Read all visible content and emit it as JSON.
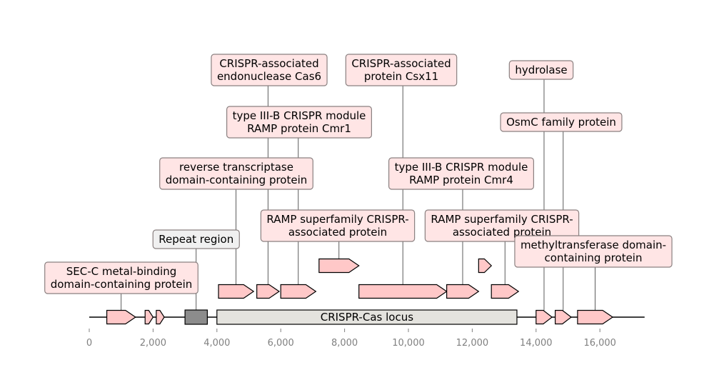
{
  "chart_data": {
    "type": "genome-map",
    "title": "",
    "x_axis": {
      "range": [
        0,
        17400
      ],
      "ticks": [
        0,
        2000,
        4000,
        6000,
        8000,
        10000,
        12000,
        14000,
        16000
      ],
      "tick_labels": [
        "0",
        "2,000",
        "4,000",
        "6,000",
        "8,000",
        "10,000",
        "12,000",
        "14,000",
        "16,000"
      ]
    },
    "backbone_range": [
      0,
      17400
    ],
    "locus": {
      "label": "CRISPR-Cas locus",
      "start": 4000,
      "end": 13400
    },
    "repeat_region": {
      "label": "Repeat region",
      "start": 3000,
      "end": 3700
    },
    "features": [
      {
        "start": 550,
        "end": 1450,
        "track": 0,
        "label": [
          "SEC-C metal-binding",
          "domain-containing protein"
        ],
        "label_level": 1
      },
      {
        "start": 1750,
        "end": 2000,
        "track": 0
      },
      {
        "start": 2100,
        "end": 2350,
        "track": 0
      },
      {
        "start": 4050,
        "end": 5150,
        "track": 1,
        "label": [
          "reverse transcriptase",
          "domain-containing protein"
        ],
        "label_level": 4
      },
      {
        "start": 5250,
        "end": 5950,
        "track": 1,
        "label": [
          "CRISPR-associated",
          "endonuclease Cas6"
        ],
        "label_level": 6
      },
      {
        "start": 6000,
        "end": 7100,
        "track": 1,
        "label": [
          "type III-B CRISPR module",
          "RAMP protein Cmr1"
        ],
        "label_level": 5
      },
      {
        "start": 7200,
        "end": 8450,
        "track": 2,
        "label": [
          "RAMP superfamily CRISPR-",
          "associated protein"
        ],
        "label_level": 3
      },
      {
        "start": 8450,
        "end": 11200,
        "track": 1,
        "label": [
          "CRISPR-associated",
          "protein Csx11"
        ],
        "label_level": 6
      },
      {
        "start": 11200,
        "end": 12200,
        "track": 1,
        "label": [
          "type III-B CRISPR module",
          "RAMP protein Cmr4"
        ],
        "label_level": 4
      },
      {
        "start": 12200,
        "end": 12600,
        "track": 2
      },
      {
        "start": 12600,
        "end": 13450,
        "track": 1,
        "label": [
          "RAMP superfamily CRISPR-",
          "associated protein"
        ],
        "label_level": 3
      },
      {
        "start": 14000,
        "end": 14500,
        "track": 0,
        "label": [
          "hydrolase"
        ],
        "label_level": 6
      },
      {
        "start": 14600,
        "end": 15100,
        "track": 0,
        "label": [
          "OsmC family protein"
        ],
        "label_level": 5
      },
      {
        "start": 15300,
        "end": 16400,
        "track": 0,
        "label": [
          "methyltransferase domain-",
          "containing protein"
        ],
        "label_level": 2
      }
    ],
    "colors": {
      "feature_fill": "#ffc8c8",
      "label_fill": "#ffe5e5",
      "repeat_fill": "#8c8c8c",
      "repeat_label_fill": "#f0f0f0",
      "locus_fill": "#e4e3de",
      "label_border": "#8a8080",
      "backbone": "#000000",
      "tick_text": "#808080"
    }
  }
}
